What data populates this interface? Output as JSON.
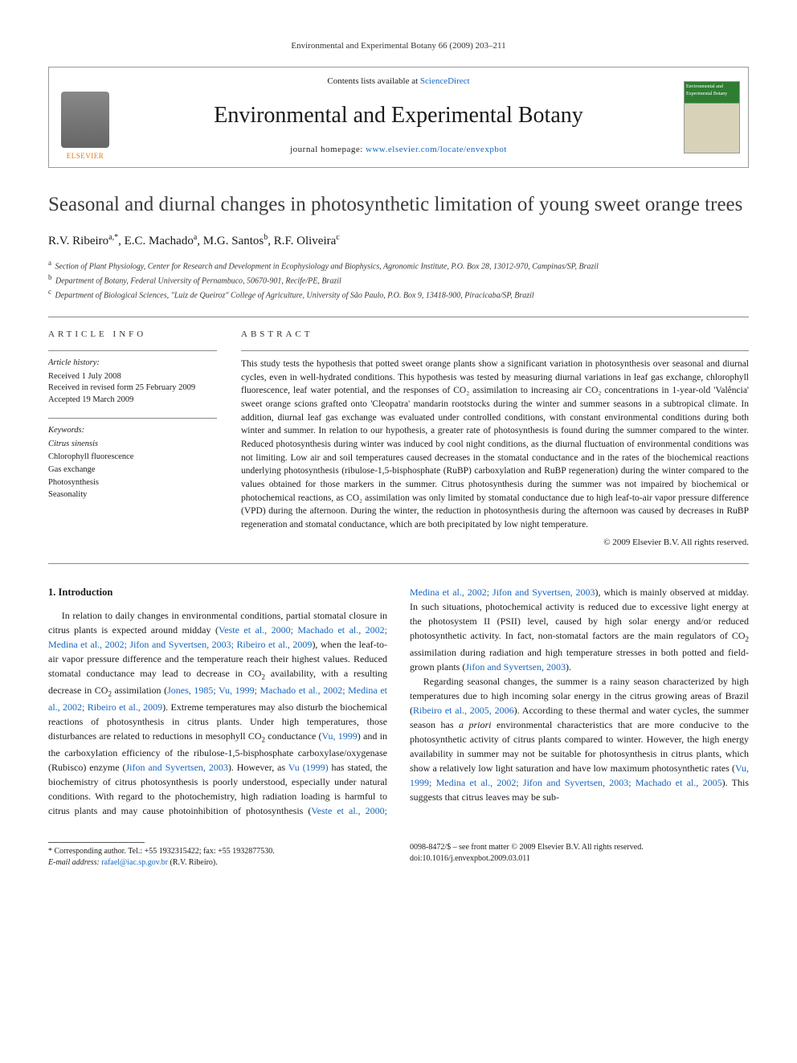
{
  "running_head": "Environmental and Experimental Botany 66 (2009) 203–211",
  "masthead": {
    "contents_prefix": "Contents lists available at ",
    "contents_link": "ScienceDirect",
    "journal": "Environmental and Experimental Botany",
    "homepage_prefix": "journal homepage: ",
    "homepage_url": "www.elsevier.com/locate/envexpbot",
    "publisher": "ELSEVIER",
    "cover_text": "Environmental and Experimental Botany"
  },
  "title": "Seasonal and diurnal changes in photosynthetic limitation of young sweet orange trees",
  "authors_html": "R.V. Ribeiro<sup>a,*</sup>, E.C. Machado<sup>a</sup>, M.G. Santos<sup>b</sup>, R.F. Oliveira<sup>c</sup>",
  "affiliations": [
    {
      "tag": "a",
      "text": "Section of Plant Physiology, Center for Research and Development in Ecophysiology and Biophysics, Agronomic Institute, P.O. Box 28, 13012-970, Campinas/SP, Brazil"
    },
    {
      "tag": "b",
      "text": "Department of Botany, Federal University of Pernambuco, 50670-901, Recife/PE, Brazil"
    },
    {
      "tag": "c",
      "text": "Department of Biological Sciences, \"Luiz de Queiroz\" College of Agriculture, University of São Paulo, P.O. Box 9, 13418-900, Piracicaba/SP, Brazil"
    }
  ],
  "article_info": {
    "heading": "article info",
    "history_label": "Article history:",
    "history": [
      "Received 1 July 2008",
      "Received in revised form 25 February 2009",
      "Accepted 19 March 2009"
    ],
    "keywords_label": "Keywords:",
    "keywords": [
      {
        "text": "Citrus sinensis",
        "italic": true
      },
      {
        "text": "Chlorophyll fluorescence",
        "italic": false
      },
      {
        "text": "Gas exchange",
        "italic": false
      },
      {
        "text": "Photosynthesis",
        "italic": false
      },
      {
        "text": "Seasonality",
        "italic": false
      }
    ]
  },
  "abstract": {
    "heading": "abstract",
    "text": "This study tests the hypothesis that potted sweet orange plants show a significant variation in photosynthesis over seasonal and diurnal cycles, even in well-hydrated conditions. This hypothesis was tested by measuring diurnal variations in leaf gas exchange, chlorophyll fluorescence, leaf water potential, and the responses of CO₂ assimilation to increasing air CO₂ concentrations in 1-year-old 'Valência' sweet orange scions grafted onto 'Cleopatra' mandarin rootstocks during the winter and summer seasons in a subtropical climate. In addition, diurnal leaf gas exchange was evaluated under controlled conditions, with constant environmental conditions during both winter and summer. In relation to our hypothesis, a greater rate of photosynthesis is found during the summer compared to the winter. Reduced photosynthesis during winter was induced by cool night conditions, as the diurnal fluctuation of environmental conditions was not limiting. Low air and soil temperatures caused decreases in the stomatal conductance and in the rates of the biochemical reactions underlying photosynthesis (ribulose-1,5-bisphosphate (RuBP) carboxylation and RuBP regeneration) during the winter compared to the values obtained for those markers in the summer. Citrus photosynthesis during the summer was not impaired by biochemical or photochemical reactions, as CO₂ assimilation was only limited by stomatal conductance due to high leaf-to-air vapor pressure difference (VPD) during the afternoon. During the winter, the reduction in photosynthesis during the afternoon was caused by decreases in RuBP regeneration and stomatal conductance, which are both precipitated by low night temperature.",
    "copyright": "© 2009 Elsevier B.V. All rights reserved."
  },
  "section1": {
    "heading": "1.  Introduction",
    "p1_a": "In relation to daily changes in environmental conditions, partial stomatal closure in citrus plants is expected around midday (",
    "p1_ref1": "Veste et al., 2000; Machado et al., 2002; Medina et al., 2002; Jifon and Syvertsen, 2003; Ribeiro et al., 2009",
    "p1_b": "), when the leaf-to-air vapor pressure difference and the temperature reach their highest values. Reduced stomatal conductance may lead to decrease in CO",
    "p1_c": " availability, with a resulting decrease in CO",
    "p1_d": " assimilation (",
    "p1_ref2": "Jones, 1985; Vu, 1999; Machado et al., 2002; Medina et al., 2002; Ribeiro et al., 2009",
    "p1_e": "). Extreme temperatures may also disturb the biochemical reactions of photosynthesis in citrus plants. Under high temperatures, those disturbances are related to reductions in mesophyll CO",
    "p1_f": " conductance (",
    "p1_ref3": "Vu, 1999",
    "p1_g": ") and in the carboxylation efficiency of the ribulose-1,5-bisphosphate carboxylase/oxygenase (Rubisco) enzyme (",
    "p1_ref4": "Jifon and Syvertsen, 2003",
    "p1_h": "). However, as ",
    "p1_ref5": "Vu (1999)",
    "p1_i": " has stated, the biochemistry of citrus photosynthesis is poorly under",
    "p2_a": "stood, especially under natural conditions. With regard to the photochemistry, high radiation loading is harmful to citrus plants and may cause photoinhibition of photosynthesis (",
    "p2_ref1": "Veste et al., 2000; Medina et al., 2002; Jifon and Syvertsen, 2003",
    "p2_b": "), which is mainly observed at midday. In such situations, photochemical activity is reduced due to excessive light energy at the photosystem II (PSII) level, caused by high solar energy and/or reduced photosynthetic activity. In fact, non-stomatal factors are the main regulators of CO",
    "p2_c": " assimilation during radiation and high temperature stresses in both potted and field-grown plants (",
    "p2_ref2": "Jifon and Syvertsen, 2003",
    "p2_d": ").",
    "p3_a": "Regarding seasonal changes, the summer is a rainy season characterized by high temperatures due to high incoming solar energy in the citrus growing areas of Brazil (",
    "p3_ref1": "Ribeiro et al., 2005, 2006",
    "p3_b": "). According to these thermal and water cycles, the summer season has ",
    "p3_c_italic": "a priori",
    "p3_d": " environmental characteristics that are more conducive to the photosynthetic activity of citrus plants compared to winter. However, the high energy availability in summer may not be suitable for photosynthesis in citrus plants, which show a relatively low light saturation and have low maximum photosynthetic rates (",
    "p3_ref2": "Vu, 1999; Medina et al., 2002; Jifon and Syvertsen, 2003; Machado et al., 2005",
    "p3_e": "). This suggests that citrus leaves may be sub-"
  },
  "footnotes": {
    "corr": "* Corresponding author. Tel.: +55 1932315422; fax: +55 1932877530.",
    "email_label": "E-mail address: ",
    "email": "rafael@iac.sp.gov.br",
    "email_suffix": " (R.V. Ribeiro).",
    "issn": "0098-8472/$ – see front matter © 2009 Elsevier B.V. All rights reserved.",
    "doi": "doi:10.1016/j.envexpbot.2009.03.011"
  },
  "colors": {
    "link": "#1565c0",
    "elsevier_orange": "#e67817",
    "rule": "#888888"
  }
}
